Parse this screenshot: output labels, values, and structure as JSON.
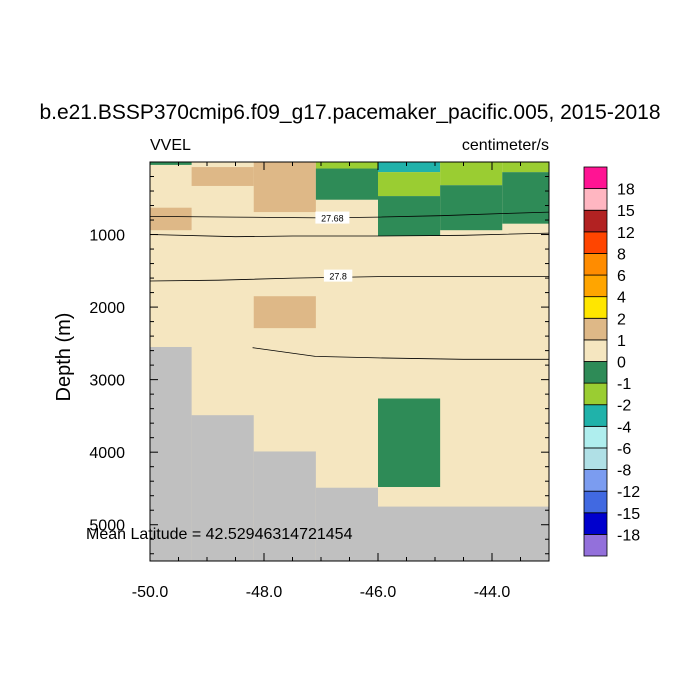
{
  "chart_data": {
    "type": "heatmap",
    "title": "b.e21.BSSP370cmip6.f09_g17.pacemaker_pacific.005, 2015-2018",
    "variable_label": "VVEL",
    "units_label": "centimeter/s",
    "ylabel": "Depth (m)",
    "xlabel": "",
    "xlim": [
      -50.0,
      -43.0
    ],
    "ylim": [
      5500,
      0
    ],
    "x_ticks": [
      -50.0,
      -48.0,
      -46.0,
      -44.0
    ],
    "x_tick_labels": [
      "-50.0",
      "-48.0",
      "-46.0",
      "-44.0"
    ],
    "y_ticks": [
      1000,
      2000,
      3000,
      4000,
      5000
    ],
    "y_tick_labels": [
      "1000",
      "2000",
      "3000",
      "4000",
      "5000"
    ],
    "annotation": "Mean Latitude = 42.52946314721454",
    "fill_levels": [
      {
        "label": "-18",
        "color": "#9370db"
      },
      {
        "label": "-15",
        "color": "#0000cd"
      },
      {
        "label": "-12",
        "color": "#4169e1"
      },
      {
        "label": "-8",
        "color": "#7b9cf0"
      },
      {
        "label": "-6",
        "color": "#b0e0e6"
      },
      {
        "label": "-4",
        "color": "#afeeee"
      },
      {
        "label": "-2",
        "color": "#20b2aa"
      },
      {
        "label": "-1",
        "color": "#9acd32"
      },
      {
        "label": "0",
        "color": "#2e8b57"
      },
      {
        "label": "1",
        "color": "#f5e6c0"
      },
      {
        "label": "2",
        "color": "#deb887"
      },
      {
        "label": "4",
        "color": "#ffe600"
      },
      {
        "label": "6",
        "color": "#ffa500"
      },
      {
        "label": "8",
        "color": "#ff8c00"
      },
      {
        "label": "12",
        "color": "#ff4500"
      },
      {
        "label": "15",
        "color": "#b22222"
      },
      {
        "label": "18",
        "color": "#ffb6c1"
      },
      {
        "label": "",
        "color": "#ff1493"
      }
    ],
    "colorbar_labels": [
      "18",
      "15",
      "12",
      "8",
      "6",
      "4",
      "2",
      "1",
      "0",
      "-1",
      "-2",
      "-4",
      "-6",
      "-8",
      "-12",
      "-15",
      "-18"
    ],
    "background_value_color": "#f5e6c0",
    "land_color": "#c0c0c0",
    "cells": [
      {
        "x": [
          -50.0,
          -49.27
        ],
        "depth": [
          0,
          40
        ],
        "color": "#2e8b57"
      },
      {
        "x": [
          -49.27,
          -48.18
        ],
        "depth": [
          70,
          330
        ],
        "color": "#deb887"
      },
      {
        "x": [
          -48.18,
          -47.09
        ],
        "depth": [
          0,
          690
        ],
        "color": "#deb887"
      },
      {
        "x": [
          -50.0,
          -49.27
        ],
        "depth": [
          630,
          940
        ],
        "color": "#deb887"
      },
      {
        "x": [
          -47.09,
          -46.0
        ],
        "depth": [
          0,
          90
        ],
        "color": "#9acd32"
      },
      {
        "x": [
          -47.09,
          -46.0
        ],
        "depth": [
          90,
          520
        ],
        "color": "#2e8b57"
      },
      {
        "x": [
          -46.0,
          -44.91
        ],
        "depth": [
          0,
          140
        ],
        "color": "#20b2aa"
      },
      {
        "x": [
          -46.0,
          -44.91
        ],
        "depth": [
          140,
          470
        ],
        "color": "#9acd32"
      },
      {
        "x": [
          -46.0,
          -44.91
        ],
        "depth": [
          470,
          1020
        ],
        "color": "#2e8b57"
      },
      {
        "x": [
          -44.91,
          -43.82
        ],
        "depth": [
          0,
          320
        ],
        "color": "#9acd32"
      },
      {
        "x": [
          -44.91,
          -43.82
        ],
        "depth": [
          320,
          940
        ],
        "color": "#2e8b57"
      },
      {
        "x": [
          -43.82,
          -43.0
        ],
        "depth": [
          0,
          140
        ],
        "color": "#9acd32"
      },
      {
        "x": [
          -43.82,
          -43.0
        ],
        "depth": [
          140,
          850
        ],
        "color": "#2e8b57"
      },
      {
        "x": [
          -48.18,
          -47.09
        ],
        "depth": [
          1850,
          2290
        ],
        "color": "#deb887"
      },
      {
        "x": [
          -46.0,
          -44.91
        ],
        "depth": [
          3260,
          4480
        ],
        "color": "#2e8b57"
      }
    ],
    "land": [
      {
        "x": [
          -50.0,
          -49.27
        ],
        "depth": [
          2550,
          5500
        ]
      },
      {
        "x": [
          -49.27,
          -48.18
        ],
        "depth": [
          3490,
          5500
        ]
      },
      {
        "x": [
          -48.18,
          -47.09
        ],
        "depth": [
          3990,
          5500
        ]
      },
      {
        "x": [
          -47.09,
          -46.0
        ],
        "depth": [
          4490,
          5500
        ]
      },
      {
        "x": [
          -46.0,
          -43.0
        ],
        "depth": [
          4750,
          5500
        ]
      }
    ],
    "contours": [
      {
        "label": "27.68",
        "label_x": -46.8,
        "label_depth": 780,
        "points": [
          [
            -50.0,
            750
          ],
          [
            -48.5,
            760
          ],
          [
            -47.0,
            770
          ],
          [
            -46.0,
            760
          ],
          [
            -44.9,
            740
          ],
          [
            -43.8,
            710
          ],
          [
            -43.0,
            690
          ]
        ]
      },
      {
        "label": "",
        "label_x": null,
        "label_depth": null,
        "points": [
          [
            -50.0,
            1000
          ],
          [
            -48.5,
            1030
          ],
          [
            -47.5,
            1020
          ],
          [
            -46.0,
            1020
          ],
          [
            -44.5,
            1010
          ],
          [
            -43.0,
            980
          ]
        ]
      },
      {
        "label": "27.8",
        "label_x": -46.7,
        "label_depth": 1580,
        "points": [
          [
            -50.0,
            1640
          ],
          [
            -48.8,
            1630
          ],
          [
            -47.5,
            1600
          ],
          [
            -46.0,
            1580
          ],
          [
            -44.5,
            1580
          ],
          [
            -43.0,
            1580
          ]
        ]
      },
      {
        "label": "",
        "label_x": null,
        "label_depth": null,
        "points": [
          [
            -48.2,
            2560
          ],
          [
            -47.1,
            2680
          ],
          [
            -46.0,
            2700
          ],
          [
            -44.5,
            2720
          ],
          [
            -43.0,
            2720
          ]
        ]
      }
    ]
  }
}
